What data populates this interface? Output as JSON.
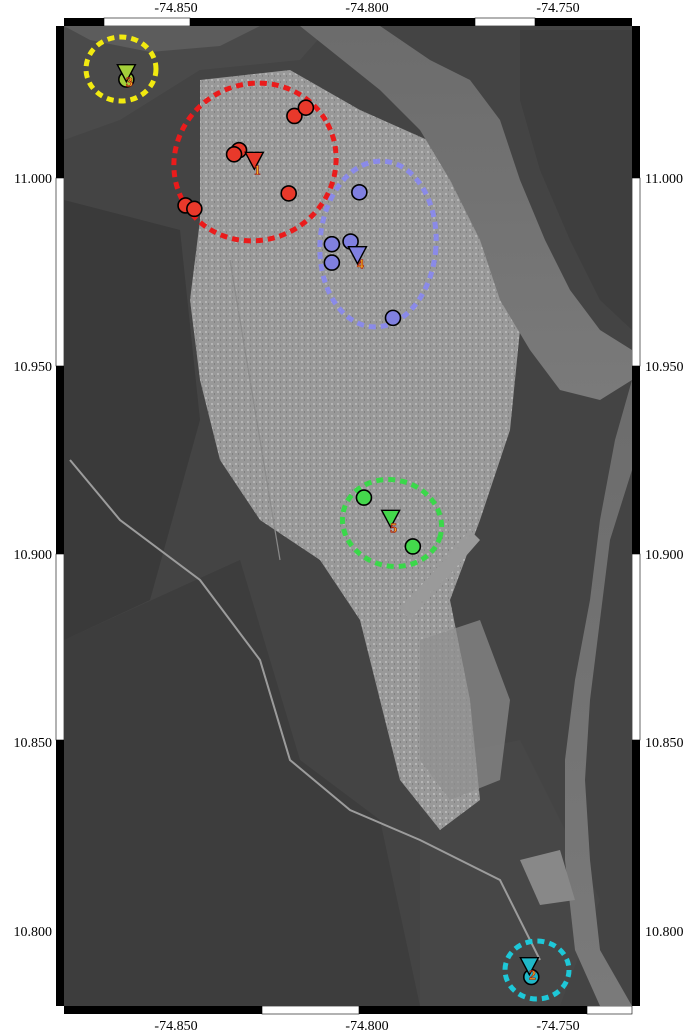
{
  "map": {
    "x_ticks": [
      "-74.850",
      "-74.800",
      "-74.750"
    ],
    "y_ticks": [
      "11.000",
      "10.950",
      "10.900",
      "10.850",
      "10.800"
    ]
  },
  "clusters": [
    {
      "id": "1",
      "color": "#e8392b",
      "ring_color": "#ea1b1b",
      "marker": {
        "lon": -74.8295,
        "lat": 11.0047
      },
      "points": [
        {
          "lon": -74.8335,
          "lat": 11.0074
        },
        {
          "lon": -74.8348,
          "lat": 11.0063
        },
        {
          "lon": -74.819,
          "lat": 11.0165
        },
        {
          "lon": -74.816,
          "lat": 11.0187
        },
        {
          "lon": -74.8205,
          "lat": 10.9959
        },
        {
          "lon": -74.8475,
          "lat": 10.9927
        },
        {
          "lon": -74.8452,
          "lat": 10.9918
        }
      ]
    },
    {
      "id": "2",
      "color": "#20b8c8",
      "ring_color": "#1ec8d8",
      "marker": {
        "lon": -74.7575,
        "lat": 10.7905
      },
      "points": [
        {
          "lon": -74.757,
          "lat": 10.7875
        }
      ]
    },
    {
      "id": "3",
      "color": "#a4d03a",
      "ring_color": "#f2ea10",
      "marker": {
        "lon": -74.863,
        "lat": 11.028
      },
      "points": [
        {
          "lon": -74.863,
          "lat": 11.0262
        }
      ]
    },
    {
      "id": "4",
      "color": "#8080e0",
      "ring_color": "#8a8ae8",
      "marker": {
        "lon": -74.8025,
        "lat": 10.9796
      },
      "points": [
        {
          "lon": -74.802,
          "lat": 10.9962
        },
        {
          "lon": -74.8092,
          "lat": 10.9824
        },
        {
          "lon": -74.8043,
          "lat": 10.9831
        },
        {
          "lon": -74.8092,
          "lat": 10.9775
        },
        {
          "lon": -74.7932,
          "lat": 10.9628
        }
      ]
    },
    {
      "id": "5",
      "color": "#44d84c",
      "ring_color": "#3ad84a",
      "marker": {
        "lon": -74.7938,
        "lat": 10.9095
      },
      "points": [
        {
          "lon": -74.8008,
          "lat": 10.915
        },
        {
          "lon": -74.788,
          "lat": 10.902
        }
      ]
    }
  ]
}
